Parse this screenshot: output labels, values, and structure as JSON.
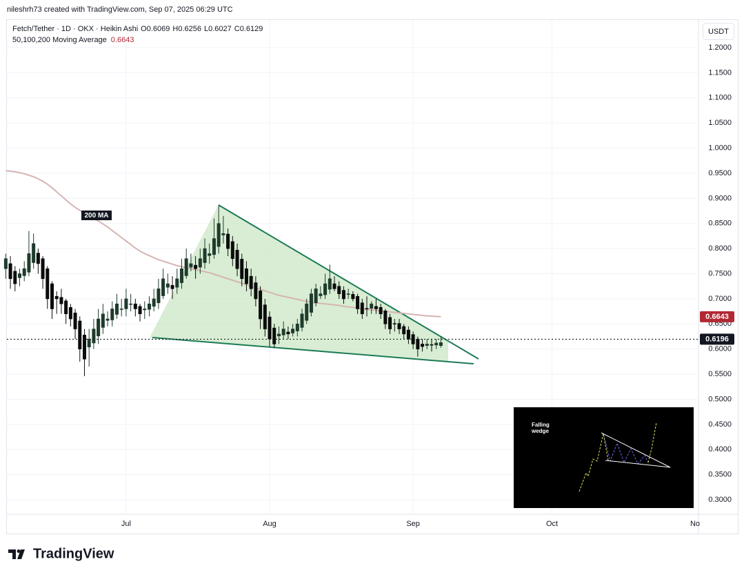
{
  "header": "nileshrh73 created with TradingView.com, Sep 07, 2025 06:29 UTC",
  "footer_logo": "TradingView",
  "chart_data": {
    "type": "candlestick",
    "title": "Fetch/Tether · 1D · OKX · Heikin Ashi",
    "ohlc_labels": [
      "O",
      "H",
      "L",
      "C"
    ],
    "currency": "USDT",
    "inset_text": [
      "Falling",
      "wedge"
    ],
    "categories": [
      null,
      null,
      null,
      null,
      null,
      null,
      null,
      null,
      null,
      null,
      null,
      null,
      null,
      null,
      null,
      null,
      null,
      null,
      null,
      null,
      null,
      null,
      null,
      null,
      null,
      null,
      "Jul",
      null,
      null,
      null,
      null,
      null,
      null,
      null,
      null,
      null,
      null,
      null,
      null,
      null,
      null,
      null,
      null,
      null,
      null,
      null,
      null,
      null,
      null,
      null,
      null,
      null,
      null,
      null,
      null,
      null,
      null,
      "Aug",
      null,
      null,
      null,
      null,
      null,
      null,
      null,
      null,
      null,
      null,
      null,
      null,
      null,
      null,
      null,
      null,
      null,
      null,
      null,
      null,
      null,
      null,
      null,
      null,
      null,
      null,
      null,
      null,
      null,
      null,
      "Sep",
      null,
      null,
      null,
      null,
      null,
      null,
      null,
      null,
      null,
      null,
      null,
      null,
      null,
      null,
      null,
      null,
      null,
      null,
      null,
      null,
      null,
      null,
      null,
      null,
      null,
      null,
      null,
      null,
      null,
      "Oct",
      null,
      null,
      null,
      null,
      null,
      null,
      null,
      null,
      null,
      null,
      null,
      null,
      null,
      null,
      null,
      null,
      null,
      null,
      null,
      null,
      null,
      null,
      null,
      null,
      null,
      null,
      null,
      null,
      null,
      null,
      "No"
    ],
    "open": [
      0.76,
      0.77,
      0.755,
      0.742,
      0.746,
      0.753,
      0.772,
      0.791,
      0.78,
      0.76,
      0.73,
      0.705,
      0.703,
      0.696,
      0.683,
      0.672,
      0.656,
      0.628,
      0.604,
      0.612,
      0.626,
      0.643,
      0.657,
      0.658,
      0.669,
      0.68,
      0.68,
      0.69,
      0.69,
      0.685,
      0.678,
      0.679,
      0.685,
      0.692,
      0.706,
      0.723,
      0.727,
      0.723,
      0.732,
      0.746,
      0.763,
      0.767,
      0.763,
      0.772,
      0.786,
      0.788,
      0.804,
      0.827,
      0.829,
      0.814,
      0.797,
      0.779,
      0.76,
      0.745,
      0.732,
      0.716,
      0.688,
      0.664,
      0.642,
      0.626,
      0.628,
      0.634,
      0.632,
      0.636,
      0.643,
      0.657,
      0.673,
      0.692,
      0.706,
      0.708,
      0.719,
      0.73,
      0.725,
      0.717,
      0.709,
      0.709,
      0.705,
      0.692,
      0.681,
      0.681,
      0.685,
      0.683,
      0.676,
      0.663,
      0.651,
      0.651,
      0.645,
      0.638,
      0.629,
      0.62,
      0.61,
      0.607,
      0.609,
      0.608,
      0.6069,
      null,
      null,
      null,
      null,
      null,
      null,
      null,
      null,
      null,
      null,
      null,
      null,
      null,
      null,
      null,
      null,
      null,
      null,
      null,
      null,
      null,
      null,
      null,
      null,
      null,
      null,
      null,
      null,
      null,
      null,
      null,
      null,
      null,
      null,
      null,
      null,
      null,
      null,
      null,
      null,
      null,
      null,
      null,
      null,
      null,
      null,
      null,
      null,
      null,
      null,
      null,
      null,
      null,
      null,
      null
    ],
    "high": [
      0.79,
      0.785,
      0.765,
      0.76,
      0.775,
      0.835,
      0.83,
      0.8,
      0.785,
      0.765,
      0.735,
      0.715,
      0.72,
      0.7,
      0.69,
      0.68,
      0.665,
      0.64,
      0.64,
      0.66,
      0.68,
      0.69,
      0.675,
      0.695,
      0.71,
      0.7,
      0.72,
      0.71,
      0.7,
      0.69,
      0.695,
      0.705,
      0.72,
      0.74,
      0.76,
      0.75,
      0.745,
      0.76,
      0.78,
      0.8,
      0.79,
      0.785,
      0.8,
      0.82,
      0.81,
      0.86,
      0.887,
      0.865,
      0.84,
      0.825,
      0.81,
      0.79,
      0.775,
      0.76,
      0.745,
      0.725,
      0.7,
      0.675,
      0.65,
      0.645,
      0.655,
      0.645,
      0.65,
      0.66,
      0.68,
      0.7,
      0.72,
      0.73,
      0.725,
      0.75,
      0.768,
      0.745,
      0.735,
      0.725,
      0.72,
      0.715,
      0.71,
      0.7,
      0.705,
      0.695,
      0.7,
      0.69,
      0.68,
      0.67,
      0.66,
      0.66,
      0.65,
      0.645,
      0.635,
      0.625,
      0.62,
      0.62,
      0.62,
      0.62,
      0.6256,
      null,
      null,
      null,
      null,
      null,
      null,
      null,
      null,
      null,
      null,
      null,
      null,
      null,
      null,
      null,
      null,
      null,
      null,
      null,
      null,
      null,
      null,
      null,
      null,
      null,
      null,
      null,
      null,
      null,
      null,
      null,
      null,
      null,
      null,
      null,
      null,
      null,
      null,
      null,
      null,
      null,
      null,
      null,
      null,
      null,
      null,
      null,
      null,
      null,
      null,
      null,
      null,
      null,
      null,
      null
    ],
    "low": [
      0.74,
      0.72,
      0.715,
      0.725,
      0.735,
      0.745,
      0.76,
      0.75,
      0.72,
      0.68,
      0.66,
      0.67,
      0.67,
      0.65,
      0.645,
      0.62,
      0.575,
      0.546,
      0.565,
      0.6,
      0.61,
      0.63,
      0.645,
      0.645,
      0.66,
      0.665,
      0.665,
      0.675,
      0.665,
      0.655,
      0.66,
      0.665,
      0.675,
      0.68,
      0.7,
      0.71,
      0.7,
      0.71,
      0.72,
      0.74,
      0.755,
      0.74,
      0.75,
      0.76,
      0.77,
      0.78,
      0.79,
      0.81,
      0.785,
      0.765,
      0.745,
      0.725,
      0.715,
      0.705,
      0.685,
      0.64,
      0.625,
      0.605,
      0.602,
      0.61,
      0.62,
      0.62,
      0.625,
      0.625,
      0.635,
      0.65,
      0.665,
      0.685,
      0.7,
      0.7,
      0.71,
      0.715,
      0.7,
      0.69,
      0.7,
      0.695,
      0.67,
      0.66,
      0.665,
      0.67,
      0.67,
      0.66,
      0.64,
      0.63,
      0.635,
      0.63,
      0.62,
      0.61,
      0.6,
      0.585,
      0.595,
      0.6,
      0.595,
      0.6,
      0.6027,
      null,
      null,
      null,
      null,
      null,
      null,
      null,
      null,
      null,
      null,
      null,
      null,
      null,
      null,
      null,
      null,
      null,
      null,
      null,
      null,
      null,
      null,
      null,
      null,
      null,
      null,
      null,
      null,
      null,
      null,
      null,
      null,
      null,
      null,
      null,
      null,
      null,
      null,
      null,
      null,
      null,
      null,
      null,
      null,
      null,
      null,
      null,
      null,
      null,
      null,
      null,
      null,
      null,
      null,
      null
    ],
    "close": [
      0.78,
      0.74,
      0.73,
      0.75,
      0.76,
      0.79,
      0.81,
      0.77,
      0.74,
      0.7,
      0.68,
      0.7,
      0.69,
      0.67,
      0.66,
      0.64,
      0.6,
      0.58,
      0.62,
      0.64,
      0.66,
      0.67,
      0.66,
      0.68,
      0.69,
      0.68,
      0.7,
      0.69,
      0.68,
      0.67,
      0.68,
      0.69,
      0.7,
      0.72,
      0.74,
      0.73,
      0.72,
      0.74,
      0.76,
      0.78,
      0.77,
      0.76,
      0.78,
      0.8,
      0.79,
      0.82,
      0.85,
      0.83,
      0.8,
      0.78,
      0.76,
      0.74,
      0.73,
      0.72,
      0.7,
      0.66,
      0.64,
      0.62,
      0.61,
      0.63,
      0.64,
      0.63,
      0.64,
      0.65,
      0.67,
      0.69,
      0.71,
      0.72,
      0.71,
      0.73,
      0.74,
      0.72,
      0.71,
      0.7,
      0.71,
      0.7,
      0.68,
      0.67,
      0.68,
      0.69,
      0.68,
      0.67,
      0.65,
      0.64,
      0.65,
      0.64,
      0.63,
      0.62,
      0.61,
      0.6,
      0.605,
      0.61,
      0.608,
      0.612,
      0.6129,
      null,
      null,
      null,
      null,
      null,
      null,
      null,
      null,
      null,
      null,
      null,
      null,
      null,
      null,
      null,
      null,
      null,
      null,
      null,
      null,
      null,
      null,
      null,
      null,
      null,
      null,
      null,
      null,
      null,
      null,
      null,
      null,
      null,
      null,
      null,
      null,
      null,
      null,
      null,
      null,
      null,
      null,
      null,
      null,
      null,
      null,
      null,
      null,
      null,
      null,
      null,
      null,
      null,
      null,
      null
    ],
    "up_color": "#1e3b2c",
    "down_color": "#0b0b0b",
    "ma": {
      "name": "50,100,200 Moving Average",
      "label": "200 MA",
      "color": "#d6b4b4",
      "value_color": "#b22833",
      "values": [
        0.955,
        0.954,
        0.953,
        0.951,
        0.949,
        0.946,
        0.943,
        0.939,
        0.934,
        0.928,
        0.921,
        0.913,
        0.905,
        0.897,
        0.889,
        0.882,
        0.876,
        0.87,
        0.865,
        0.86,
        0.855,
        0.849,
        0.843,
        0.836,
        0.829,
        0.822,
        0.815,
        0.808,
        0.801,
        0.795,
        0.79,
        0.786,
        0.782,
        0.778,
        0.775,
        0.772,
        0.769,
        0.766,
        0.764,
        0.762,
        0.76,
        0.758,
        0.756,
        0.754,
        0.752,
        0.749,
        0.746,
        0.743,
        0.74,
        0.737,
        0.734,
        0.731,
        0.728,
        0.725,
        0.722,
        0.719,
        0.716,
        0.713,
        0.71,
        0.707,
        0.705,
        0.703,
        0.701,
        0.699,
        0.697,
        0.695,
        0.693,
        0.692,
        0.691,
        0.69,
        0.689,
        0.688,
        0.687,
        0.685,
        0.684,
        0.683,
        0.682,
        0.68,
        0.679,
        0.678,
        0.677,
        0.676,
        0.675,
        0.674,
        0.673,
        0.672,
        0.671,
        0.67,
        0.669,
        0.668,
        0.667,
        0.666,
        0.6655,
        0.665,
        0.6643,
        null,
        null,
        null,
        null,
        null,
        null,
        null,
        null,
        null,
        null,
        null,
        null,
        null,
        null,
        null,
        null,
        null,
        null,
        null,
        null,
        null,
        null,
        null,
        null,
        null,
        null,
        null,
        null,
        null,
        null,
        null,
        null,
        null,
        null,
        null,
        null,
        null,
        null,
        null,
        null,
        null,
        null,
        null,
        null,
        null,
        null,
        null,
        null,
        null,
        null,
        null,
        null,
        null,
        null,
        null
      ]
    },
    "last_price": 0.6196,
    "last_price_color": "#131722",
    "ylim": [
      0.2712,
      1.2536
    ],
    "yticks": [
      {
        "value": 0.3,
        "label": "0.3000"
      },
      {
        "value": 0.35,
        "label": "0.3500"
      },
      {
        "value": 0.4,
        "label": "0.4000"
      },
      {
        "value": 0.45,
        "label": "0.4500"
      },
      {
        "value": 0.5,
        "label": "0.5000"
      },
      {
        "value": 0.55,
        "label": "0.5500"
      },
      {
        "value": 0.6,
        "label": "0.6000"
      },
      {
        "value": 0.65,
        "label": "0.6500"
      },
      {
        "value": 0.7,
        "label": "0.7000"
      },
      {
        "value": 0.75,
        "label": "0.7500"
      },
      {
        "value": 0.8,
        "label": "0.8000"
      },
      {
        "value": 0.85,
        "label": "0.8500"
      },
      {
        "value": 0.9,
        "label": "0.9000"
      },
      {
        "value": 0.95,
        "label": "0.9500"
      },
      {
        "value": 1.0,
        "label": "1.0000"
      },
      {
        "value": 1.05,
        "label": "1.0500"
      },
      {
        "value": 1.1,
        "label": "1.1000"
      },
      {
        "value": 1.15,
        "label": "1.1500"
      },
      {
        "value": 1.2,
        "label": "1.2000"
      }
    ],
    "grid": true
  }
}
